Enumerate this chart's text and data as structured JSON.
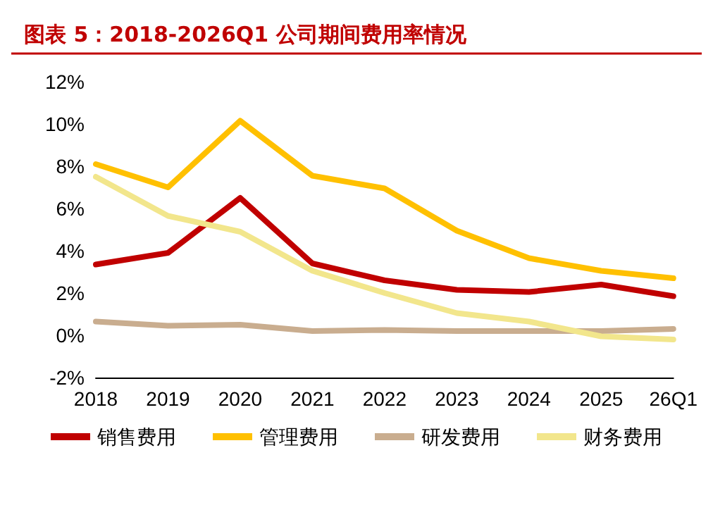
{
  "chart_data": {
    "type": "line",
    "title": "图表 5：2018-2026Q1 公司期间费用率情况",
    "categories": [
      "2018",
      "2019",
      "2020",
      "2021",
      "2022",
      "2023",
      "2024",
      "2025",
      "26Q1"
    ],
    "series": [
      {
        "name": "销售费用",
        "color": "#c00000",
        "values": [
          3.35,
          3.9,
          6.5,
          3.4,
          2.6,
          2.15,
          2.05,
          2.4,
          1.85
        ]
      },
      {
        "name": "管理费用",
        "color": "#ffc000",
        "values": [
          8.1,
          7.0,
          10.15,
          7.55,
          6.95,
          4.95,
          3.65,
          3.05,
          2.7
        ]
      },
      {
        "name": "研发费用",
        "color": "#c9ad8f",
        "values": [
          0.65,
          0.45,
          0.5,
          0.2,
          0.25,
          0.2,
          0.2,
          0.2,
          0.3
        ]
      },
      {
        "name": "财务费用",
        "color": "#f2e68c",
        "values": [
          7.5,
          5.65,
          4.9,
          3.05,
          2.0,
          1.05,
          0.65,
          -0.05,
          -0.2
        ]
      }
    ],
    "ylim": [
      -2,
      12
    ],
    "yticks": [
      {
        "value": -2,
        "label": "-2%"
      },
      {
        "value": 0,
        "label": "0%"
      },
      {
        "value": 2,
        "label": "2%"
      },
      {
        "value": 4,
        "label": "4%"
      },
      {
        "value": 6,
        "label": "6%"
      },
      {
        "value": 8,
        "label": "8%"
      },
      {
        "value": 10,
        "label": "10%"
      },
      {
        "value": 12,
        "label": "12%"
      }
    ],
    "grid": false,
    "legend": "bottom",
    "marker": "none",
    "line_style": "solid"
  }
}
